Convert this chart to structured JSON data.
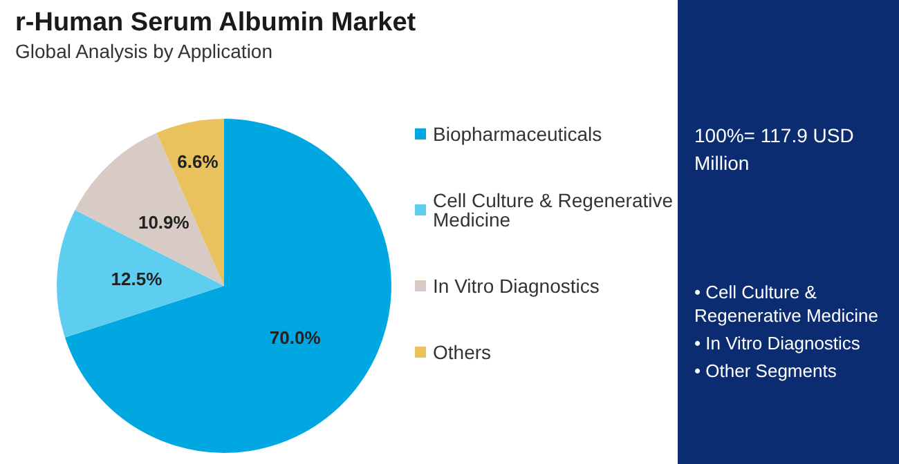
{
  "chart_data": {
    "type": "pie",
    "title": "r-Human Serum Albumin Market",
    "subtitle": "Global Analysis by Application",
    "categories": [
      "Biopharmaceuticals",
      "Cell Culture & Regenerative Medicine",
      "In Vitro Diagnostics",
      "Others"
    ],
    "values": [
      70.0,
      12.5,
      10.9,
      6.6
    ],
    "colors": [
      "#00a7e1",
      "#5dcdf0",
      "#d8cbc5",
      "#e9c25e"
    ],
    "value_labels": [
      "70.0%",
      "12.5%",
      "10.9%",
      "6.6%"
    ],
    "legend": "right",
    "annotations": [
      "100%= 117.9 USD Million",
      "• Cell Culture & Regenerative Medicine",
      "• In Vitro Diagnostics",
      "• Other Segments"
    ]
  }
}
